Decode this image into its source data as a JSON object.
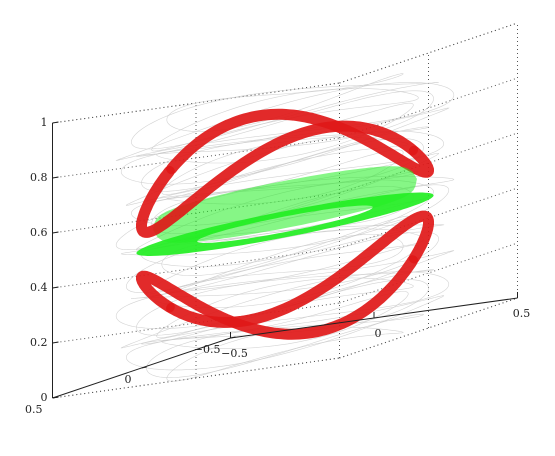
{
  "chart_data": {
    "type": "line",
    "projection": "3d",
    "grid": true,
    "zlim": [
      0,
      1
    ],
    "z_ticks": [
      "0",
      "0.2",
      "0.4",
      "0.6",
      "0.8",
      "1"
    ],
    "y_ticks": [
      "0.5",
      "0",
      "−0.5"
    ],
    "x_ticks": [
      "−0.5",
      "0",
      "0.5"
    ],
    "series": [
      {
        "role": "background-trajectories",
        "color": "#c8c8c8",
        "shape": "cylinder",
        "radius": 0.5,
        "z_range": [
          0,
          0.9
        ]
      },
      {
        "role": "red-band",
        "color": "#e01818",
        "shape": "two-lobed band winding around the axis",
        "radius": 0.5,
        "z_range": [
          0.05,
          0.85
        ]
      },
      {
        "role": "green-torus",
        "color": "#22ee22",
        "shape": "torus",
        "major_radius": 0.35,
        "minor_radius": 0.09,
        "z_center": 0.45
      }
    ]
  }
}
